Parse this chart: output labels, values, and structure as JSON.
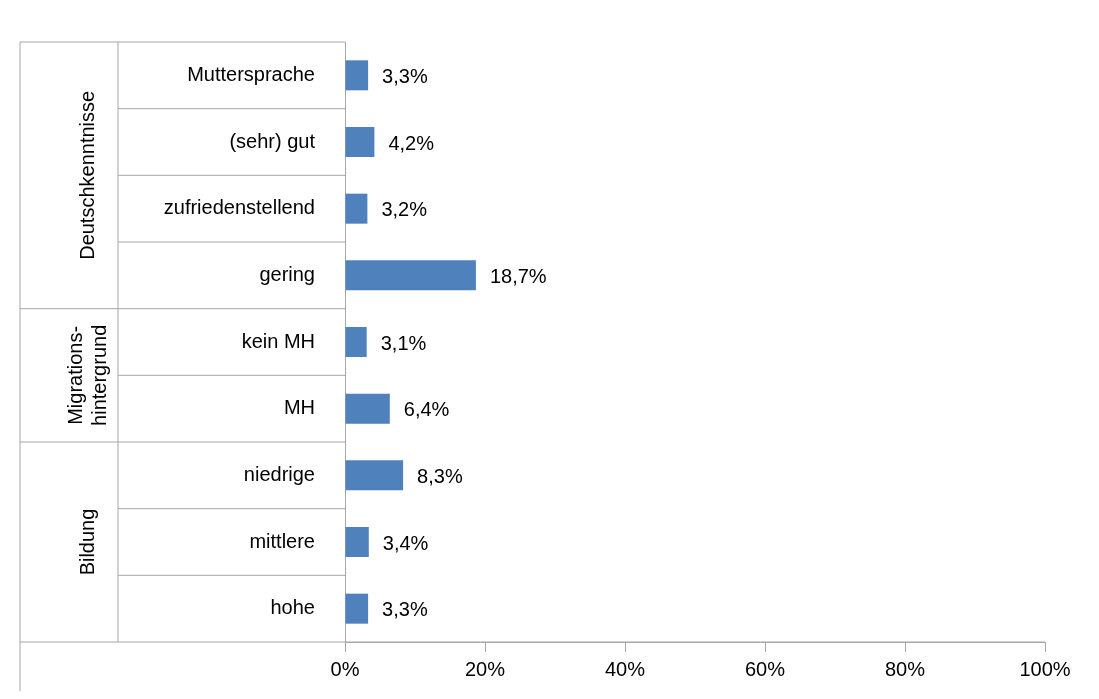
{
  "chart_data": {
    "type": "bar",
    "orientation": "horizontal",
    "categories": [
      "Muttersprache",
      "(sehr) gut",
      "zufriedenstellend",
      "gering",
      "kein MH",
      "MH",
      "niedrige",
      "mittlere",
      "hohe"
    ],
    "values": [
      3.3,
      4.2,
      3.2,
      18.7,
      3.1,
      6.4,
      8.3,
      3.4,
      3.3
    ],
    "value_labels": [
      "3,3%",
      "4,2%",
      "3,2%",
      "18,7%",
      "3,1%",
      "6,4%",
      "8,3%",
      "3,4%",
      "3,3%"
    ],
    "color": "#4f81bd",
    "xlim": [
      0,
      100
    ],
    "xticks": [
      {
        "value": 0,
        "label": "0%"
      },
      {
        "value": 20,
        "label": "20%"
      },
      {
        "value": 40,
        "label": "40%"
      },
      {
        "value": 60,
        "label": "60%"
      },
      {
        "value": 80,
        "label": "80%"
      },
      {
        "value": 100,
        "label": "100%"
      }
    ],
    "annotations": [
      "Deutschkenntnisse",
      "Migrations-hintergrund",
      "Bildung"
    ],
    "grid": false,
    "legend": false
  }
}
